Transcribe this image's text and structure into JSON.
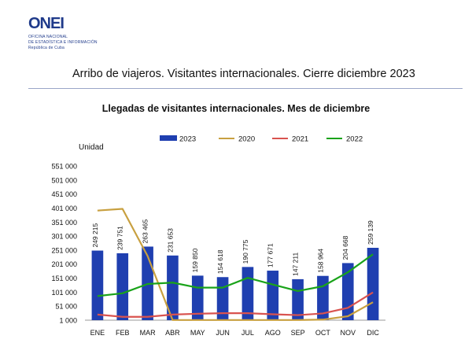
{
  "header": {
    "logo_word": "ONEI",
    "logo_lines": [
      "OFICINA NACIONAL",
      "DE ESTADÍSTICA E INFORMACIÓN",
      "República de Cuba"
    ],
    "title": "Arribo de viajeros. Visitantes internacionales.  Cierre diciembre 2023",
    "accent": "#1f3a8a"
  },
  "chart_data": {
    "type": "bar",
    "title": "Llegadas de visitantes internacionales. Mes de diciembre",
    "ylabel": "Unidad",
    "xlabel": "",
    "categories": [
      "ENE",
      "FEB",
      "MAR",
      "ABR",
      "MAY",
      "JUN",
      "JUL",
      "AGO",
      "SEP",
      "OCT",
      "NOV",
      "DIC"
    ],
    "ylim": [
      1000,
      551000
    ],
    "yticks": [
      1000,
      51000,
      101000,
      151000,
      201000,
      251000,
      301000,
      351000,
      401000,
      451000,
      501000,
      551000
    ],
    "ytick_labels": [
      "1 000",
      "51 000",
      "101 000",
      "151 000",
      "201 000",
      "251 000",
      "301 000",
      "351 000",
      "401 000",
      "451 000",
      "501 000",
      "551 000"
    ],
    "legend_position": "top",
    "grid": false,
    "series": [
      {
        "name": "2023",
        "kind": "bar",
        "color": "#1f3fb0",
        "values": [
          249215,
          239751,
          263465,
          231653,
          159850,
          154618,
          190775,
          177671,
          147211,
          158964,
          204668,
          259139
        ],
        "labels": [
          "249 215",
          "239 751",
          "263 465",
          "231 653",
          "159 850",
          "154 618",
          "190 775",
          "177 671",
          "147 211",
          "158 964",
          "204 668",
          "259 139"
        ]
      },
      {
        "name": "2020",
        "kind": "line",
        "color": "#c8a040",
        "values": [
          392000,
          398000,
          230000,
          1500,
          1500,
          1500,
          1500,
          1500,
          1500,
          3000,
          15000,
          65000
        ]
      },
      {
        "name": "2021",
        "kind": "line",
        "color": "#d9534f",
        "values": [
          21000,
          13000,
          13000,
          21000,
          24000,
          26000,
          26000,
          22000,
          19000,
          25000,
          45000,
          100000
        ]
      },
      {
        "name": "2022",
        "kind": "line",
        "color": "#1aa31a",
        "values": [
          87000,
          97000,
          130000,
          135000,
          117000,
          117000,
          152000,
          128000,
          105000,
          122000,
          172000,
          236000
        ]
      }
    ]
  }
}
